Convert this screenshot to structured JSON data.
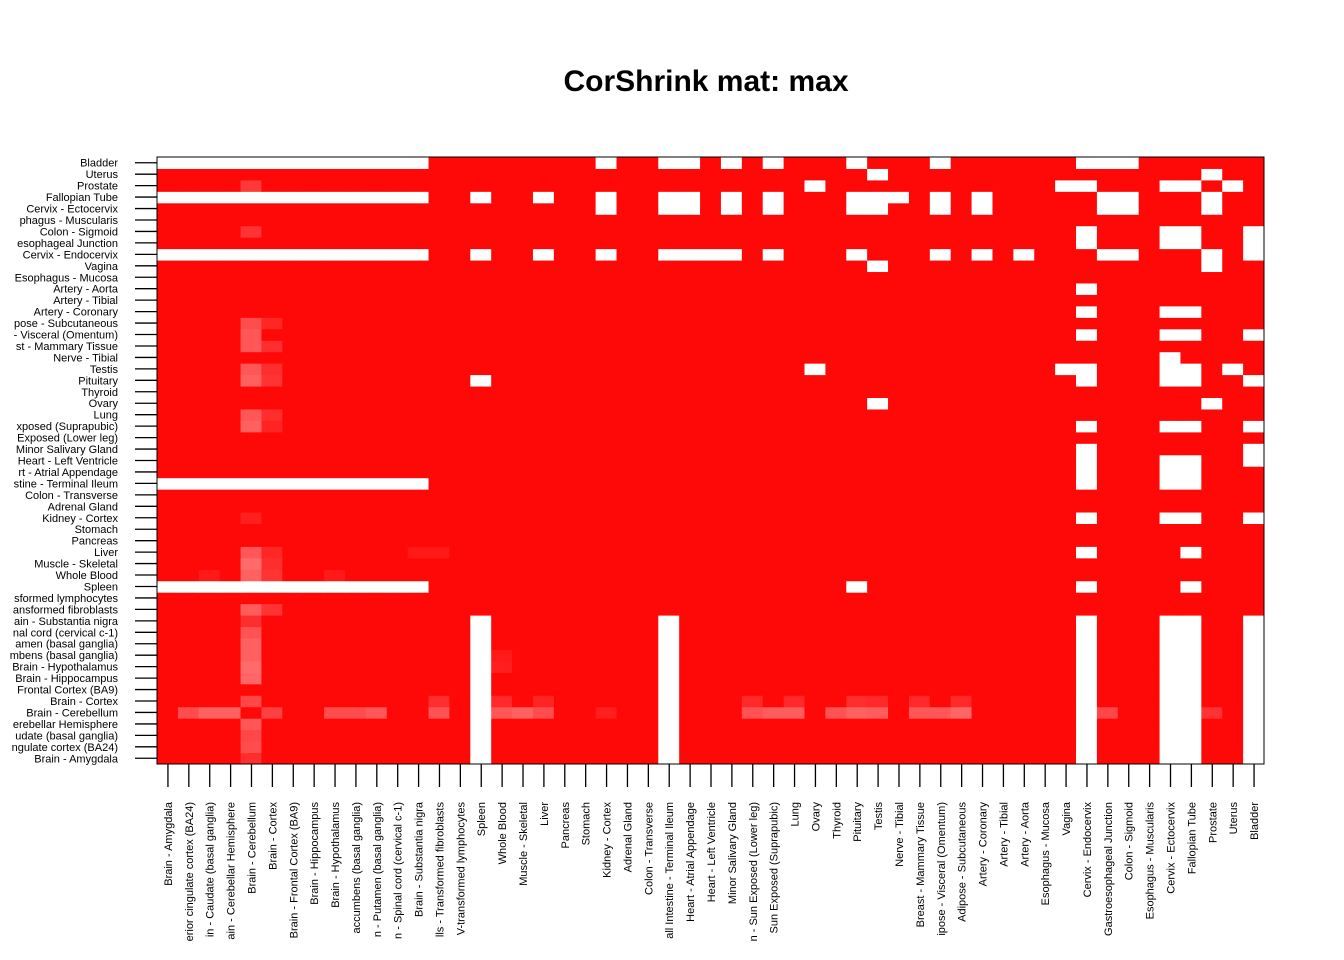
{
  "chart_data": {
    "type": "heatmap",
    "title": "CorShrink mat: max",
    "xlabel": "",
    "ylabel": "",
    "grid": false,
    "legend": "none",
    "color_low": "#ffffff",
    "color_high": "#ff0000",
    "value_range": [
      0,
      1
    ],
    "row_labels_bottom_to_top": [
      "Brain - Amygdala",
      "ngulate cortex (BA24)",
      "udate (basal ganglia)",
      "erebellar Hemisphere",
      "Brain - Cerebellum",
      "Brain - Cortex",
      "Frontal Cortex (BA9)",
      "Brain - Hippocampus",
      "Brain - Hypothalamus",
      "mbens (basal ganglia)",
      "amen (basal ganglia)",
      "nal cord (cervical c-1)",
      "ain - Substantia nigra",
      "ansformed fibroblasts",
      "sformed lymphocytes",
      "Spleen",
      "Whole Blood",
      "Muscle - Skeletal",
      "Liver",
      "Pancreas",
      "Stomach",
      "Kidney - Cortex",
      "Adrenal Gland",
      "Colon - Transverse",
      "stine - Terminal Ileum",
      "rt - Atrial Appendage",
      "Heart - Left Ventricle",
      "Minor Salivary Gland",
      "Exposed (Lower leg)",
      "xposed (Suprapubic)",
      "Lung",
      "Ovary",
      "Thyroid",
      "Pituitary",
      "Testis",
      "Nerve - Tibial",
      "st - Mammary Tissue",
      "- Visceral (Omentum)",
      "pose - Subcutaneous",
      "Artery - Coronary",
      "Artery - Tibial",
      "Artery - Aorta",
      "Esophagus - Mucosa",
      "Vagina",
      "Cervix - Endocervix",
      "esophageal Junction",
      "Colon - Sigmoid",
      "phagus - Muscularis",
      "Cervix - Ectocervix",
      "Fallopian Tube",
      "Prostate",
      "Uterus",
      "Bladder"
    ],
    "column_labels_left_to_right": [
      "Brain - Amygdala",
      "erior cingulate cortex (BA24)",
      "in - Caudate (basal ganglia)",
      "ain - Cerebellar Hemisphere",
      "Brain - Cerebellum",
      "Brain - Cortex",
      "Brain - Frontal Cortex (BA9)",
      "Brain - Hippocampus",
      "Brain - Hypothalamus",
      "accumbens (basal ganglia)",
      "n - Putamen (basal ganglia)",
      "n - Spinal cord (cervical c-1)",
      "Brain - Substantia nigra",
      "lls - Transformed fibroblasts",
      "V-transformed lymphocytes",
      "Spleen",
      "Whole Blood",
      "Muscle - Skeletal",
      "Liver",
      "Pancreas",
      "Stomach",
      "Kidney - Cortex",
      "Adrenal Gland",
      "Colon - Transverse",
      "all Intestine - Terminal Ileum",
      "Heart - Atrial Appendage",
      "Heart - Left Ventricle",
      "Minor Salivary Gland",
      "n - Sun Exposed (Lower leg)",
      "Sun Exposed (Suprapubic)",
      "Lung",
      "Ovary",
      "Thyroid",
      "Pituitary",
      "Testis",
      "Nerve - Tibial",
      "Breast - Mammary Tissue",
      "ipose - Visceral (Omentum)",
      "Adipose - Subcutaneous",
      "Artery - Coronary",
      "Artery - Tibial",
      "Artery - Aorta",
      "Esophagus - Mucosa",
      "Vagina",
      "Cervix - Endocervix",
      "Gastroesophageal Junction",
      "Colon - Sigmoid",
      "Esophagus - Muscularis",
      "Cervix - Ectocervix",
      "Fallopian Tube",
      "Prostate",
      "Uterus",
      "Bladder"
    ],
    "base_value": 0.97,
    "full_white_rows": [
      {
        "row": 24,
        "col_from": 0,
        "col_to": 12
      },
      {
        "row": 15,
        "col_from": 0,
        "col_to": 12
      },
      {
        "row": 52,
        "col_from": 0,
        "col_to": 12
      },
      {
        "row": 44,
        "col_from": 0,
        "col_to": 12
      },
      {
        "row": 49,
        "col_from": 0,
        "col_to": 12
      }
    ],
    "full_white_cols": [
      {
        "col": 15,
        "row_from": 0,
        "row_to": 12
      },
      {
        "col": 24,
        "row_from": 0,
        "row_to": 12
      },
      {
        "col": 44,
        "row_from": 0,
        "row_to": 12
      },
      {
        "col": 48,
        "row_from": 0,
        "row_to": 12
      },
      {
        "col": 49,
        "row_from": 0,
        "row_to": 12
      },
      {
        "col": 52,
        "row_from": 0,
        "row_to": 12
      }
    ],
    "white_cells": [
      [
        52,
        21
      ],
      [
        52,
        24
      ],
      [
        52,
        25
      ],
      [
        52,
        27
      ],
      [
        52,
        29
      ],
      [
        52,
        33
      ],
      [
        52,
        37
      ],
      [
        52,
        44
      ],
      [
        52,
        45
      ],
      [
        52,
        46
      ],
      [
        51,
        34
      ],
      [
        51,
        50
      ],
      [
        50,
        31
      ],
      [
        50,
        43
      ],
      [
        50,
        44
      ],
      [
        50,
        48
      ],
      [
        50,
        49
      ],
      [
        50,
        51
      ],
      [
        49,
        15
      ],
      [
        49,
        18
      ],
      [
        49,
        21
      ],
      [
        49,
        24
      ],
      [
        49,
        25
      ],
      [
        49,
        27
      ],
      [
        49,
        29
      ],
      [
        49,
        33
      ],
      [
        49,
        34
      ],
      [
        49,
        35
      ],
      [
        49,
        37
      ],
      [
        49,
        39
      ],
      [
        49,
        45
      ],
      [
        49,
        46
      ],
      [
        49,
        50
      ],
      [
        48,
        21
      ],
      [
        48,
        24
      ],
      [
        48,
        25
      ],
      [
        48,
        27
      ],
      [
        48,
        29
      ],
      [
        48,
        33
      ],
      [
        48,
        34
      ],
      [
        48,
        37
      ],
      [
        48,
        39
      ],
      [
        48,
        45
      ],
      [
        48,
        46
      ],
      [
        48,
        50
      ],
      [
        46,
        44
      ],
      [
        46,
        48
      ],
      [
        46,
        49
      ],
      [
        46,
        52
      ],
      [
        45,
        44
      ],
      [
        45,
        48
      ],
      [
        45,
        49
      ],
      [
        45,
        52
      ],
      [
        44,
        15
      ],
      [
        44,
        18
      ],
      [
        44,
        21
      ],
      [
        44,
        24
      ],
      [
        44,
        25
      ],
      [
        44,
        26
      ],
      [
        44,
        27
      ],
      [
        44,
        29
      ],
      [
        44,
        33
      ],
      [
        44,
        37
      ],
      [
        44,
        39
      ],
      [
        44,
        41
      ],
      [
        44,
        45
      ],
      [
        44,
        46
      ],
      [
        44,
        50
      ],
      [
        44,
        52
      ],
      [
        43,
        34
      ],
      [
        43,
        50
      ],
      [
        41,
        44
      ],
      [
        39,
        44
      ],
      [
        39,
        48
      ],
      [
        39,
        49
      ],
      [
        37,
        44
      ],
      [
        37,
        48
      ],
      [
        37,
        49
      ],
      [
        37,
        52
      ],
      [
        35,
        48
      ],
      [
        34,
        31
      ],
      [
        34,
        43
      ],
      [
        34,
        44
      ],
      [
        34,
        48
      ],
      [
        34,
        49
      ],
      [
        34,
        51
      ],
      [
        33,
        15
      ],
      [
        33,
        44
      ],
      [
        33,
        48
      ],
      [
        33,
        49
      ],
      [
        33,
        52
      ],
      [
        31,
        34
      ],
      [
        31,
        50
      ],
      [
        29,
        44
      ],
      [
        29,
        48
      ],
      [
        29,
        49
      ],
      [
        29,
        52
      ],
      [
        27,
        44
      ],
      [
        27,
        52
      ],
      [
        26,
        44
      ],
      [
        26,
        48
      ],
      [
        26,
        49
      ],
      [
        26,
        52
      ],
      [
        25,
        44
      ],
      [
        25,
        48
      ],
      [
        25,
        49
      ],
      [
        24,
        44
      ],
      [
        24,
        48
      ],
      [
        24,
        49
      ],
      [
        21,
        44
      ],
      [
        21,
        48
      ],
      [
        21,
        49
      ],
      [
        21,
        52
      ],
      [
        18,
        44
      ],
      [
        18,
        49
      ],
      [
        15,
        33
      ],
      [
        15,
        44
      ],
      [
        15,
        49
      ]
    ],
    "light_cells": [
      [
        4,
        1,
        0.7
      ],
      [
        4,
        2,
        0.62
      ],
      [
        4,
        3,
        0.62
      ],
      [
        4,
        5,
        0.75
      ],
      [
        4,
        8,
        0.7
      ],
      [
        4,
        9,
        0.7
      ],
      [
        4,
        10,
        0.66
      ],
      [
        4,
        13,
        0.68
      ],
      [
        4,
        16,
        0.66
      ],
      [
        4,
        17,
        0.62
      ],
      [
        4,
        18,
        0.7
      ],
      [
        4,
        21,
        0.88
      ],
      [
        4,
        28,
        0.68
      ],
      [
        4,
        29,
        0.64
      ],
      [
        4,
        30,
        0.64
      ],
      [
        4,
        32,
        0.68
      ],
      [
        4,
        33,
        0.62
      ],
      [
        4,
        34,
        0.64
      ],
      [
        4,
        36,
        0.66
      ],
      [
        4,
        37,
        0.66
      ],
      [
        4,
        38,
        0.6
      ],
      [
        4,
        45,
        0.72
      ],
      [
        4,
        50,
        0.8
      ],
      [
        5,
        13,
        0.82
      ],
      [
        5,
        16,
        0.84
      ],
      [
        5,
        18,
        0.86
      ],
      [
        5,
        28,
        0.84
      ],
      [
        5,
        30,
        0.84
      ],
      [
        5,
        33,
        0.82
      ],
      [
        5,
        34,
        0.84
      ],
      [
        5,
        36,
        0.84
      ],
      [
        5,
        38,
        0.84
      ],
      [
        0,
        4,
        0.82
      ],
      [
        1,
        4,
        0.7
      ],
      [
        2,
        4,
        0.72
      ],
      [
        3,
        4,
        0.66
      ],
      [
        5,
        4,
        0.72
      ],
      [
        7,
        4,
        0.6
      ],
      [
        8,
        4,
        0.58
      ],
      [
        9,
        4,
        0.62
      ],
      [
        10,
        4,
        0.62
      ],
      [
        11,
        4,
        0.68
      ],
      [
        12,
        4,
        0.82
      ],
      [
        13,
        4,
        0.64
      ],
      [
        13,
        5,
        0.8
      ],
      [
        16,
        4,
        0.62
      ],
      [
        16,
        5,
        0.8
      ],
      [
        17,
        4,
        0.58
      ],
      [
        17,
        5,
        0.82
      ],
      [
        18,
        4,
        0.66
      ],
      [
        18,
        5,
        0.85
      ],
      [
        21,
        4,
        0.88
      ],
      [
        29,
        4,
        0.62
      ],
      [
        29,
        5,
        0.86
      ],
      [
        30,
        4,
        0.66
      ],
      [
        30,
        5,
        0.82
      ],
      [
        33,
        4,
        0.62
      ],
      [
        33,
        5,
        0.8
      ],
      [
        34,
        4,
        0.66
      ],
      [
        34,
        5,
        0.82
      ],
      [
        36,
        4,
        0.66
      ],
      [
        36,
        5,
        0.82
      ],
      [
        37,
        4,
        0.66
      ],
      [
        38,
        4,
        0.7
      ],
      [
        38,
        5,
        0.85
      ],
      [
        50,
        4,
        0.78
      ],
      [
        46,
        4,
        0.8
      ],
      [
        8,
        16,
        0.88
      ],
      [
        9,
        16,
        0.9
      ],
      [
        16,
        2,
        0.9
      ],
      [
        16,
        8,
        0.9
      ],
      [
        18,
        12,
        0.9
      ],
      [
        18,
        13,
        0.9
      ]
    ]
  }
}
